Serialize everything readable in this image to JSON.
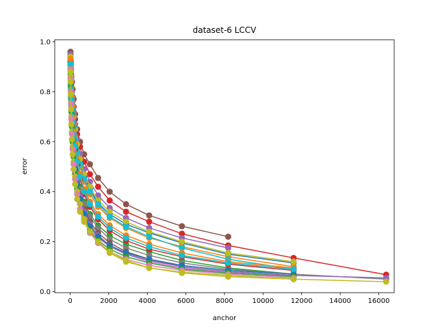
{
  "chart_data": {
    "type": "line",
    "title": "dataset-6 LCCV",
    "xlabel": "anchor",
    "ylabel": "error",
    "xlim": [
      -800,
      16800
    ],
    "ylim": [
      -0.004,
      1.008
    ],
    "xticks": [
      0,
      2000,
      4000,
      6000,
      8000,
      10000,
      12000,
      14000,
      16000
    ],
    "yticks": [
      0.0,
      0.2,
      0.4,
      0.6,
      0.8,
      1.0
    ],
    "xtick_labels": [
      "0",
      "2000",
      "4000",
      "6000",
      "8000",
      "10000",
      "12000",
      "14000",
      "16000"
    ],
    "ytick_labels": [
      "0.0",
      "0.2",
      "0.4",
      "0.6",
      "0.8",
      "1.0"
    ],
    "grid": false,
    "legend": "none",
    "marker": "circle",
    "series": [
      {
        "color": "#8c564b",
        "x": [
          16,
          23,
          32,
          45,
          64,
          91,
          128,
          181,
          256,
          362,
          512,
          724,
          1024,
          1448,
          2048,
          2896,
          4096,
          5793,
          8192
        ],
        "y": [
          0.96,
          0.93,
          0.91,
          0.89,
          0.86,
          0.84,
          0.81,
          0.77,
          0.71,
          0.65,
          0.6,
          0.55,
          0.51,
          0.455,
          0.4,
          0.35,
          0.305,
          0.262,
          0.22
        ]
      },
      {
        "color": "#d62728",
        "x": [
          16,
          23,
          32,
          45,
          64,
          91,
          128,
          181,
          256,
          362,
          512,
          724,
          1024,
          1448,
          2048,
          2896,
          4096,
          5793,
          8192,
          11585,
          16384
        ],
        "y": [
          0.95,
          0.92,
          0.9,
          0.87,
          0.84,
          0.81,
          0.78,
          0.74,
          0.69,
          0.63,
          0.58,
          0.52,
          0.47,
          0.42,
          0.365,
          0.32,
          0.28,
          0.232,
          0.185,
          0.135,
          0.068
        ]
      },
      {
        "color": "#9467bd",
        "x": [
          16,
          23,
          32,
          45,
          64,
          91,
          128,
          181,
          256,
          362,
          512,
          724,
          1024,
          1448,
          2048,
          2896,
          4096,
          5793,
          8192
        ],
        "y": [
          0.95,
          0.92,
          0.89,
          0.86,
          0.83,
          0.8,
          0.76,
          0.72,
          0.67,
          0.61,
          0.55,
          0.49,
          0.44,
          0.385,
          0.335,
          0.295,
          0.255,
          0.215,
          0.175
        ]
      },
      {
        "color": "#1f77b4",
        "x": [
          16,
          23,
          32,
          45,
          64,
          91,
          128,
          181,
          256,
          362,
          512,
          724,
          1024,
          1448,
          2048,
          2896,
          4096,
          5793,
          8192,
          11585
        ],
        "y": [
          0.94,
          0.91,
          0.88,
          0.85,
          0.81,
          0.77,
          0.73,
          0.69,
          0.64,
          0.58,
          0.52,
          0.46,
          0.41,
          0.355,
          0.31,
          0.27,
          0.235,
          0.195,
          0.15,
          0.115
        ]
      },
      {
        "color": "#ff7f0e",
        "x": [
          16,
          23,
          32,
          45,
          64,
          91,
          128,
          181,
          256,
          362,
          512,
          724,
          1024,
          1448,
          2048,
          2896,
          4096,
          5793,
          8192,
          11585
        ],
        "y": [
          0.94,
          0.9,
          0.87,
          0.84,
          0.8,
          0.76,
          0.72,
          0.67,
          0.62,
          0.56,
          0.5,
          0.44,
          0.39,
          0.34,
          0.295,
          0.255,
          0.215,
          0.18,
          0.14,
          0.1
        ]
      },
      {
        "color": "#2ca02c",
        "x": [
          16,
          23,
          32,
          45,
          64,
          91,
          128,
          181,
          256,
          362,
          512,
          724,
          1024,
          1448,
          2048,
          2896,
          4096,
          5793,
          8192,
          11585
        ],
        "y": [
          0.93,
          0.89,
          0.85,
          0.81,
          0.77,
          0.72,
          0.67,
          0.61,
          0.55,
          0.48,
          0.42,
          0.36,
          0.31,
          0.265,
          0.225,
          0.19,
          0.16,
          0.125,
          0.095,
          0.07
        ]
      },
      {
        "color": "#bcbd22",
        "x": [
          16,
          23,
          32,
          45,
          64,
          91,
          128,
          181,
          256,
          362,
          512,
          724,
          1024,
          1448,
          2048,
          2896,
          4096,
          5793,
          8192,
          11585
        ],
        "y": [
          0.94,
          0.91,
          0.88,
          0.85,
          0.82,
          0.78,
          0.74,
          0.7,
          0.65,
          0.59,
          0.53,
          0.47,
          0.42,
          0.365,
          0.32,
          0.28,
          0.24,
          0.2,
          0.155,
          0.12
        ]
      },
      {
        "color": "#17becf",
        "x": [
          16,
          23,
          32,
          45,
          64,
          91,
          128,
          181,
          256,
          362,
          512,
          724,
          1024,
          1448,
          2048,
          2896,
          4096,
          5793,
          8192,
          11585
        ],
        "y": [
          0.92,
          0.9,
          0.87,
          0.83,
          0.79,
          0.75,
          0.71,
          0.66,
          0.61,
          0.56,
          0.51,
          0.45,
          0.4,
          0.35,
          0.3,
          0.26,
          0.22,
          0.175,
          0.13,
          0.09
        ]
      },
      {
        "color": "#e377c2",
        "x": [
          16,
          23,
          32,
          45,
          64,
          91,
          128,
          181,
          256,
          362,
          512,
          724,
          1024,
          1448,
          2048,
          2896,
          4096,
          5793,
          8192,
          11585
        ],
        "y": [
          0.9,
          0.86,
          0.82,
          0.77,
          0.72,
          0.66,
          0.6,
          0.54,
          0.48,
          0.42,
          0.36,
          0.3,
          0.25,
          0.215,
          0.18,
          0.15,
          0.12,
          0.095,
          0.075,
          0.06
        ]
      },
      {
        "color": "#7f7f7f",
        "x": [
          16,
          23,
          32,
          45,
          64,
          91,
          128,
          181,
          256,
          362,
          512,
          724,
          1024,
          1448,
          2048,
          2896,
          4096,
          5793,
          8192,
          11585,
          16384
        ],
        "y": [
          0.93,
          0.89,
          0.85,
          0.81,
          0.76,
          0.71,
          0.66,
          0.6,
          0.54,
          0.47,
          0.41,
          0.35,
          0.3,
          0.255,
          0.21,
          0.175,
          0.145,
          0.115,
          0.09,
          0.07,
          0.05
        ]
      },
      {
        "color": "#8c564b",
        "x": [
          16,
          23,
          32,
          45,
          64,
          91,
          128,
          181,
          256,
          362,
          512,
          724,
          1024,
          1448,
          2048,
          2896,
          4096,
          5793,
          8192,
          11585
        ],
        "y": [
          0.92,
          0.88,
          0.84,
          0.8,
          0.75,
          0.7,
          0.64,
          0.58,
          0.52,
          0.45,
          0.39,
          0.33,
          0.28,
          0.235,
          0.195,
          0.16,
          0.13,
          0.1,
          0.08,
          0.065
        ]
      },
      {
        "color": "#d62728",
        "x": [
          16,
          23,
          32,
          45,
          64,
          91,
          128,
          181,
          256,
          362,
          512,
          724,
          1024,
          1448,
          2048,
          2896,
          4096,
          5793,
          8192,
          11585
        ],
        "y": [
          0.93,
          0.9,
          0.86,
          0.82,
          0.78,
          0.73,
          0.68,
          0.63,
          0.57,
          0.51,
          0.45,
          0.39,
          0.34,
          0.29,
          0.245,
          0.205,
          0.17,
          0.14,
          0.11,
          0.085
        ]
      },
      {
        "color": "#9467bd",
        "x": [
          16,
          23,
          32,
          45,
          64,
          91,
          128,
          181,
          256,
          362,
          512,
          724,
          1024,
          1448,
          2048,
          2896,
          4096,
          5793,
          8192,
          11585,
          16384
        ],
        "y": [
          0.92,
          0.88,
          0.84,
          0.79,
          0.74,
          0.68,
          0.63,
          0.57,
          0.51,
          0.44,
          0.38,
          0.32,
          0.27,
          0.225,
          0.185,
          0.15,
          0.125,
          0.1,
          0.08,
          0.065,
          0.055
        ]
      },
      {
        "color": "#1f77b4",
        "x": [
          16,
          23,
          32,
          45,
          64,
          91,
          128,
          181,
          256,
          362,
          512,
          724,
          1024,
          1448,
          2048,
          2896,
          4096,
          5793,
          8192,
          11585
        ],
        "y": [
          0.92,
          0.88,
          0.83,
          0.78,
          0.73,
          0.67,
          0.61,
          0.55,
          0.49,
          0.43,
          0.37,
          0.31,
          0.26,
          0.22,
          0.185,
          0.155,
          0.13,
          0.105,
          0.085,
          0.07
        ]
      },
      {
        "color": "#ff7f0e",
        "x": [
          16,
          23,
          32,
          45,
          64,
          91,
          128,
          181,
          256,
          362,
          512,
          724,
          1024,
          1448,
          2048,
          2896,
          4096,
          5793,
          8192,
          11585
        ],
        "y": [
          0.93,
          0.89,
          0.86,
          0.82,
          0.78,
          0.74,
          0.69,
          0.64,
          0.59,
          0.53,
          0.47,
          0.41,
          0.36,
          0.31,
          0.265,
          0.225,
          0.19,
          0.155,
          0.12,
          0.095
        ]
      },
      {
        "color": "#2ca02c",
        "x": [
          16,
          23,
          32,
          45,
          64,
          91,
          128,
          181,
          256,
          362,
          512,
          724,
          1024,
          1448,
          2048,
          2896,
          4096,
          5793,
          8192,
          11585
        ],
        "y": [
          0.91,
          0.87,
          0.82,
          0.77,
          0.72,
          0.66,
          0.6,
          0.54,
          0.47,
          0.41,
          0.35,
          0.29,
          0.245,
          0.205,
          0.17,
          0.14,
          0.115,
          0.09,
          0.075,
          0.06
        ]
      },
      {
        "color": "#bcbd22",
        "x": [
          16,
          23,
          32,
          45,
          64,
          91,
          128,
          181,
          256,
          362,
          512,
          724,
          1024,
          1448,
          2048,
          2896,
          4096,
          5793,
          8192,
          11585,
          16384
        ],
        "y": [
          0.9,
          0.86,
          0.81,
          0.76,
          0.7,
          0.64,
          0.58,
          0.52,
          0.46,
          0.4,
          0.35,
          0.29,
          0.24,
          0.195,
          0.155,
          0.12,
          0.095,
          0.075,
          0.06,
          0.05,
          0.04
        ]
      },
      {
        "color": "#17becf",
        "x": [
          16,
          23,
          32,
          45,
          64,
          91,
          128,
          181,
          256,
          362,
          512,
          724,
          1024,
          1448,
          2048,
          2896,
          4096,
          5793,
          8192,
          11585
        ],
        "y": [
          0.91,
          0.88,
          0.85,
          0.81,
          0.77,
          0.73,
          0.68,
          0.63,
          0.58,
          0.52,
          0.46,
          0.4,
          0.35,
          0.3,
          0.255,
          0.215,
          0.18,
          0.145,
          0.115,
          0.09
        ]
      },
      {
        "color": "#e377c2",
        "x": [
          16,
          23,
          32,
          45,
          64,
          91,
          128,
          181,
          256,
          362,
          512,
          724,
          1024,
          1448,
          2048,
          2896,
          4096,
          5793,
          8192,
          11585
        ],
        "y": [
          0.89,
          0.85,
          0.8,
          0.75,
          0.69,
          0.63,
          0.57,
          0.51,
          0.45,
          0.39,
          0.33,
          0.28,
          0.235,
          0.195,
          0.16,
          0.13,
          0.105,
          0.085,
          0.07,
          0.055
        ]
      },
      {
        "color": "#bcbd22",
        "x": [
          16,
          23,
          32,
          45,
          64,
          91,
          128,
          181,
          256,
          362,
          512,
          724,
          1024,
          1448,
          2048,
          2896,
          4096,
          5793,
          8192,
          11585
        ],
        "y": [
          0.88,
          0.84,
          0.79,
          0.73,
          0.67,
          0.61,
          0.55,
          0.49,
          0.43,
          0.37,
          0.32,
          0.28,
          0.24,
          0.2,
          0.16,
          0.125,
          0.095,
          0.078,
          0.065,
          0.05
        ]
      }
    ]
  }
}
